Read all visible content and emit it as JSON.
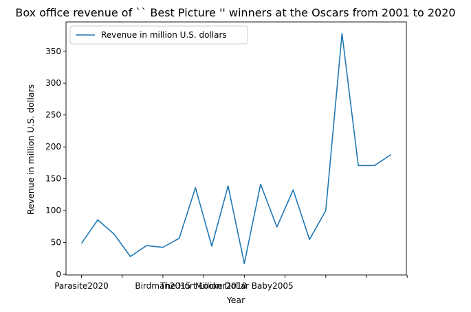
{
  "chart_data": {
    "type": "line",
    "title": "Box office revenue of `` Best Picture '' winners at the Oscars from 2001 to 2020",
    "xlabel": "Year",
    "ylabel": "Revenue in million U.S. dollars",
    "legend": "top-left",
    "grid": false,
    "line_color": "#1f77b4",
    "x_tick_labels": [
      "Parasite2020",
      "",
      "Birdman2015",
      "The Hurt Locker2010",
      "Million Dollar Baby2005",
      ""
    ],
    "x_tick_positions": [
      0,
      2.5,
      5,
      7.5,
      10,
      12.5,
      15,
      17.5,
      20
    ],
    "y_ticks": [
      0,
      50,
      100,
      150,
      200,
      250,
      300,
      350
    ],
    "xlim": [
      -0.95,
      19.95
    ],
    "ylim": [
      -1,
      396
    ],
    "series": [
      {
        "name": "Revenue in million U.S. dollars",
        "x": [
          0,
          1,
          2,
          3,
          4,
          5,
          6,
          7,
          8,
          9,
          10,
          11,
          12,
          13,
          14,
          15,
          16,
          17,
          18,
          19
        ],
        "values": [
          48.4,
          85.5,
          63.1,
          27.9,
          45,
          42.4,
          56.6,
          136,
          44.2,
          138.8,
          17,
          141.3,
          74.3,
          132.4,
          54.6,
          100.1,
          377.8,
          170.7,
          170.8,
          187.7
        ]
      }
    ]
  }
}
